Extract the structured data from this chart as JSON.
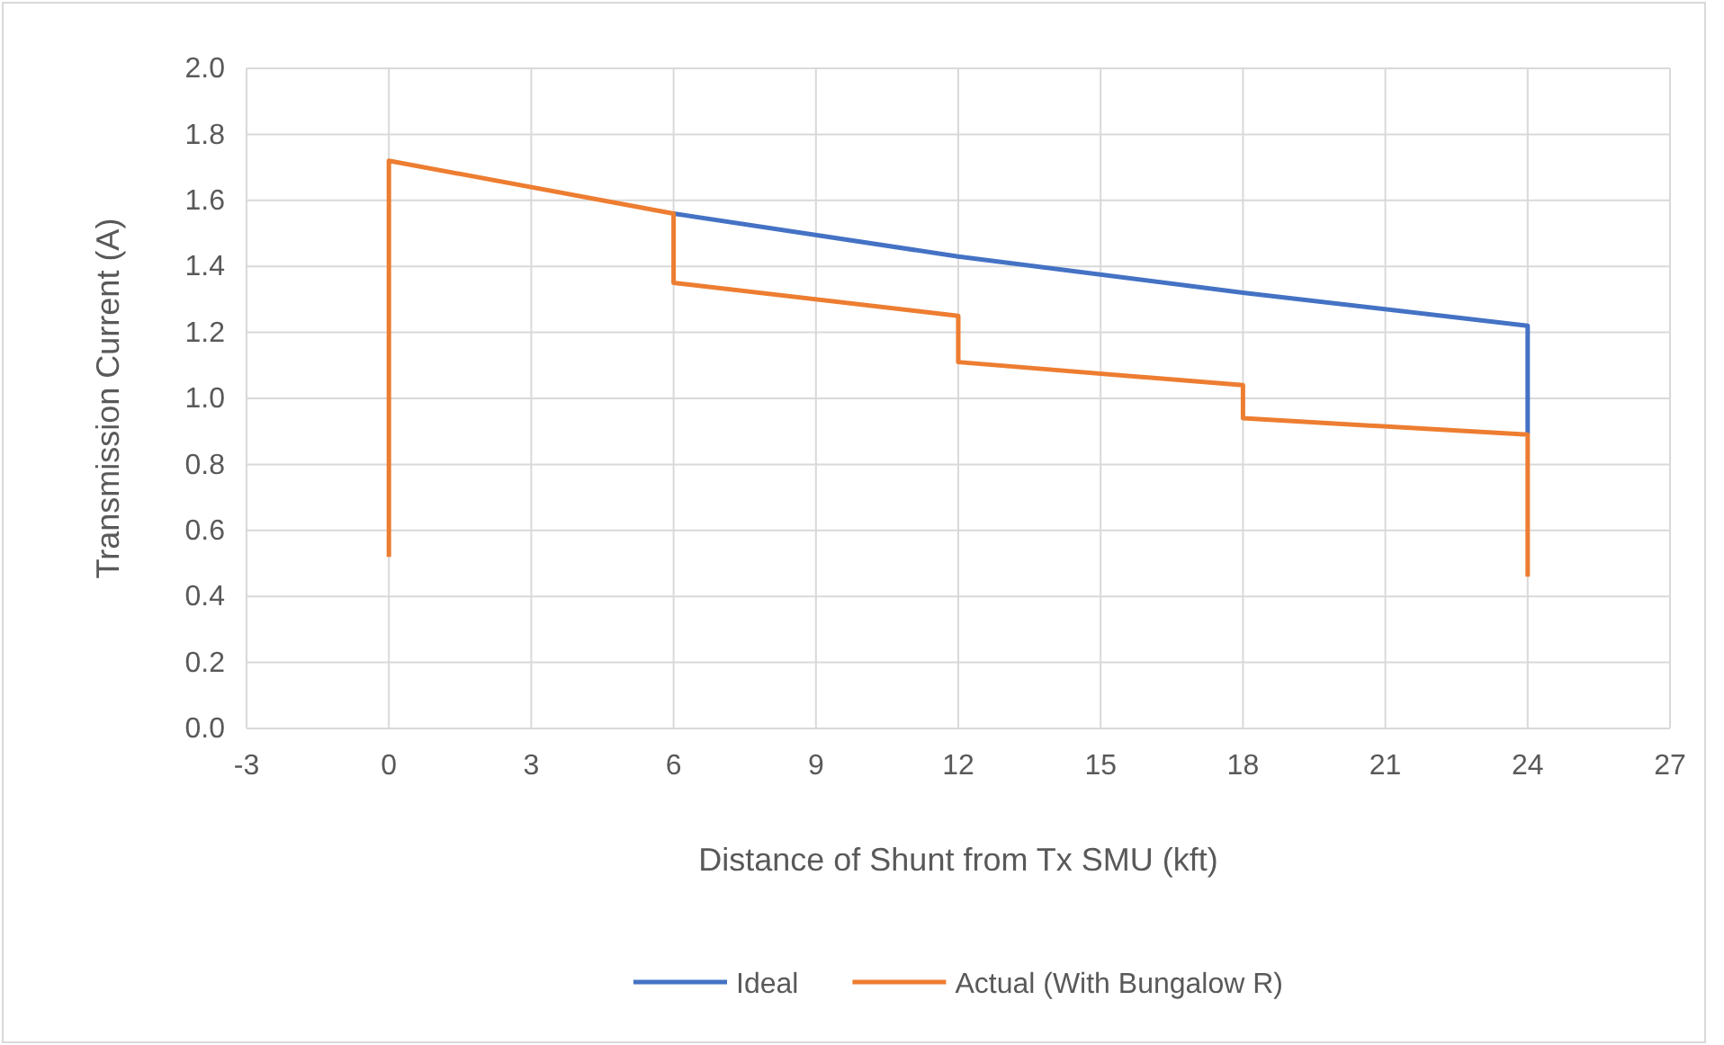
{
  "chart_data": {
    "type": "line",
    "xlabel": "Distance of Shunt from Tx SMU (kft)",
    "ylabel": "Transmission Current (A)",
    "xlim": [
      -3,
      27
    ],
    "xticks": [
      -3,
      0,
      3,
      6,
      9,
      12,
      15,
      18,
      21,
      24,
      27
    ],
    "ylim": [
      0,
      2
    ],
    "yticks": [
      {
        "value": 0,
        "label": "0.0"
      },
      {
        "value": 0.2,
        "label": "0.2"
      },
      {
        "value": 0.4,
        "label": "0.4"
      },
      {
        "value": 0.6,
        "label": "0.6"
      },
      {
        "value": 0.8,
        "label": "0.8"
      },
      {
        "value": 1,
        "label": "1.0"
      },
      {
        "value": 1.2,
        "label": "1.2"
      },
      {
        "value": 1.4,
        "label": "1.4"
      },
      {
        "value": 1.6,
        "label": "1.6"
      },
      {
        "value": 1.8,
        "label": "1.8"
      },
      {
        "value": 2,
        "label": "2.0"
      }
    ],
    "grid": true,
    "legend": "bottom",
    "line_style": "solid",
    "series": [
      {
        "name": "Ideal",
        "color": "#4472c4",
        "x": [
          6,
          12,
          18,
          24,
          24
        ],
        "values": [
          1.56,
          1.43,
          1.32,
          1.22,
          0.89
        ]
      },
      {
        "name": "Actual (With Bungalow R)",
        "color": "#ed7d31",
        "x": [
          0,
          0,
          6,
          6,
          12,
          12,
          18,
          18,
          24,
          24
        ],
        "values": [
          0.52,
          1.72,
          1.56,
          1.35,
          1.25,
          1.11,
          1.04,
          0.94,
          0.89,
          0.46
        ]
      }
    ]
  }
}
